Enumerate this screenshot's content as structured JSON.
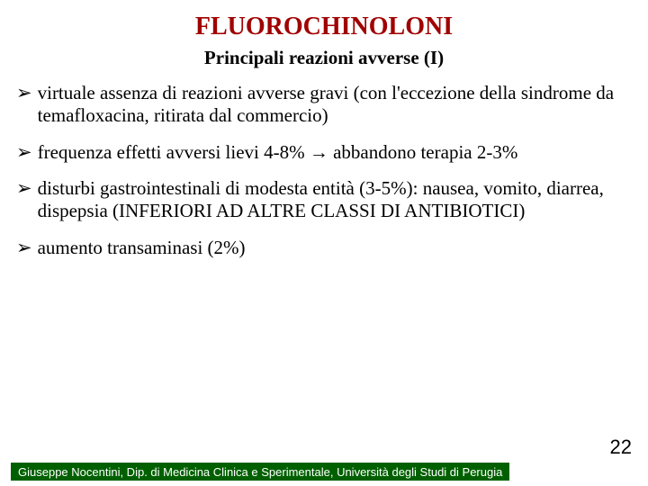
{
  "title": "FLUOROCHINOLONI",
  "subtitle": "Principali reazioni avverse (I)",
  "bullet_marker": "➢",
  "bullets": [
    "virtuale assenza di reazioni avverse gravi (con l'eccezione della sindrome da temafloxacina, ritirata dal commercio)",
    "frequenza effetti avversi lievi 4-8% → abbandono terapia 2-3%",
    "disturbi gastrointestinali di modesta entità (3-5%): nausea, vomito, diarrea, dispepsia (INFERIORI AD ALTRE CLASSI DI ANTIBIOTICI)",
    "aumento transaminasi (2%)"
  ],
  "page_number": "22",
  "footer": "Giuseppe Nocentini, Dip. di Medicina Clinica e Sperimentale, Università degli Studi di Perugia",
  "colors": {
    "title": "#a00000",
    "text": "#000000",
    "footer_bg": "#006000",
    "footer_text": "#ffffff",
    "background": "#ffffff"
  }
}
